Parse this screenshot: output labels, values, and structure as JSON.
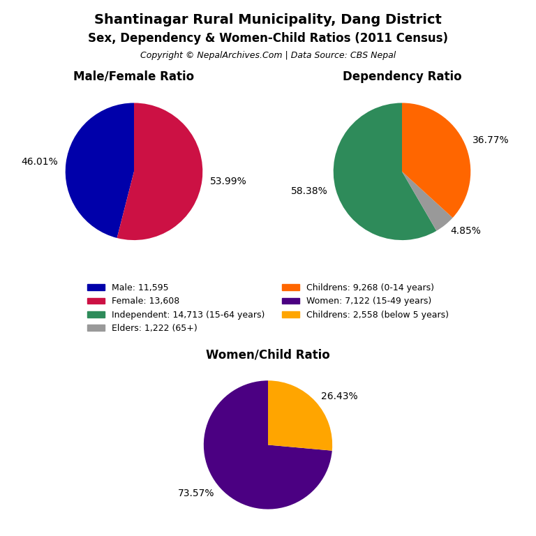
{
  "title": "Shantinagar Rural Municipality, Dang District",
  "subtitle": "Sex, Dependency & Women-Child Ratios (2011 Census)",
  "annotations": [
    "Copyright © NepalArchives.Com | Data Source: CBS Nepal"
  ],
  "legend": "center",
  "chart_data": [
    {
      "type": "pie",
      "title": "Male/Female Ratio",
      "categories": [
        "Male: 11,595",
        "Female: 13,608"
      ],
      "values": [
        46.01,
        53.99
      ],
      "value_labels": [
        "46.01%",
        "53.99%"
      ],
      "colors": [
        "#0000AA",
        "#CC1144"
      ],
      "data_labels": true
    },
    {
      "type": "pie",
      "title": "Dependency Ratio",
      "categories": [
        "Independent: 14,713 (15-64 years)",
        "Elders: 1,222 (65+)",
        "Childrens: 9,268 (0-14 years)"
      ],
      "values": [
        58.38,
        4.85,
        36.77
      ],
      "value_labels": [
        "58.38%",
        "4.85%",
        "36.77%"
      ],
      "colors": [
        "#2E8B5A",
        "#999999",
        "#FF6600"
      ],
      "data_labels": true
    },
    {
      "type": "pie",
      "title": "Women/Child Ratio",
      "categories": [
        "Women: 7,122 (15-49 years)",
        "Childrens: 2,558 (below 5 years)"
      ],
      "values": [
        73.57,
        26.43
      ],
      "value_labels": [
        "73.57%",
        "26.43%"
      ],
      "colors": [
        "#4B0082",
        "#FFA500"
      ],
      "data_labels": true
    }
  ]
}
